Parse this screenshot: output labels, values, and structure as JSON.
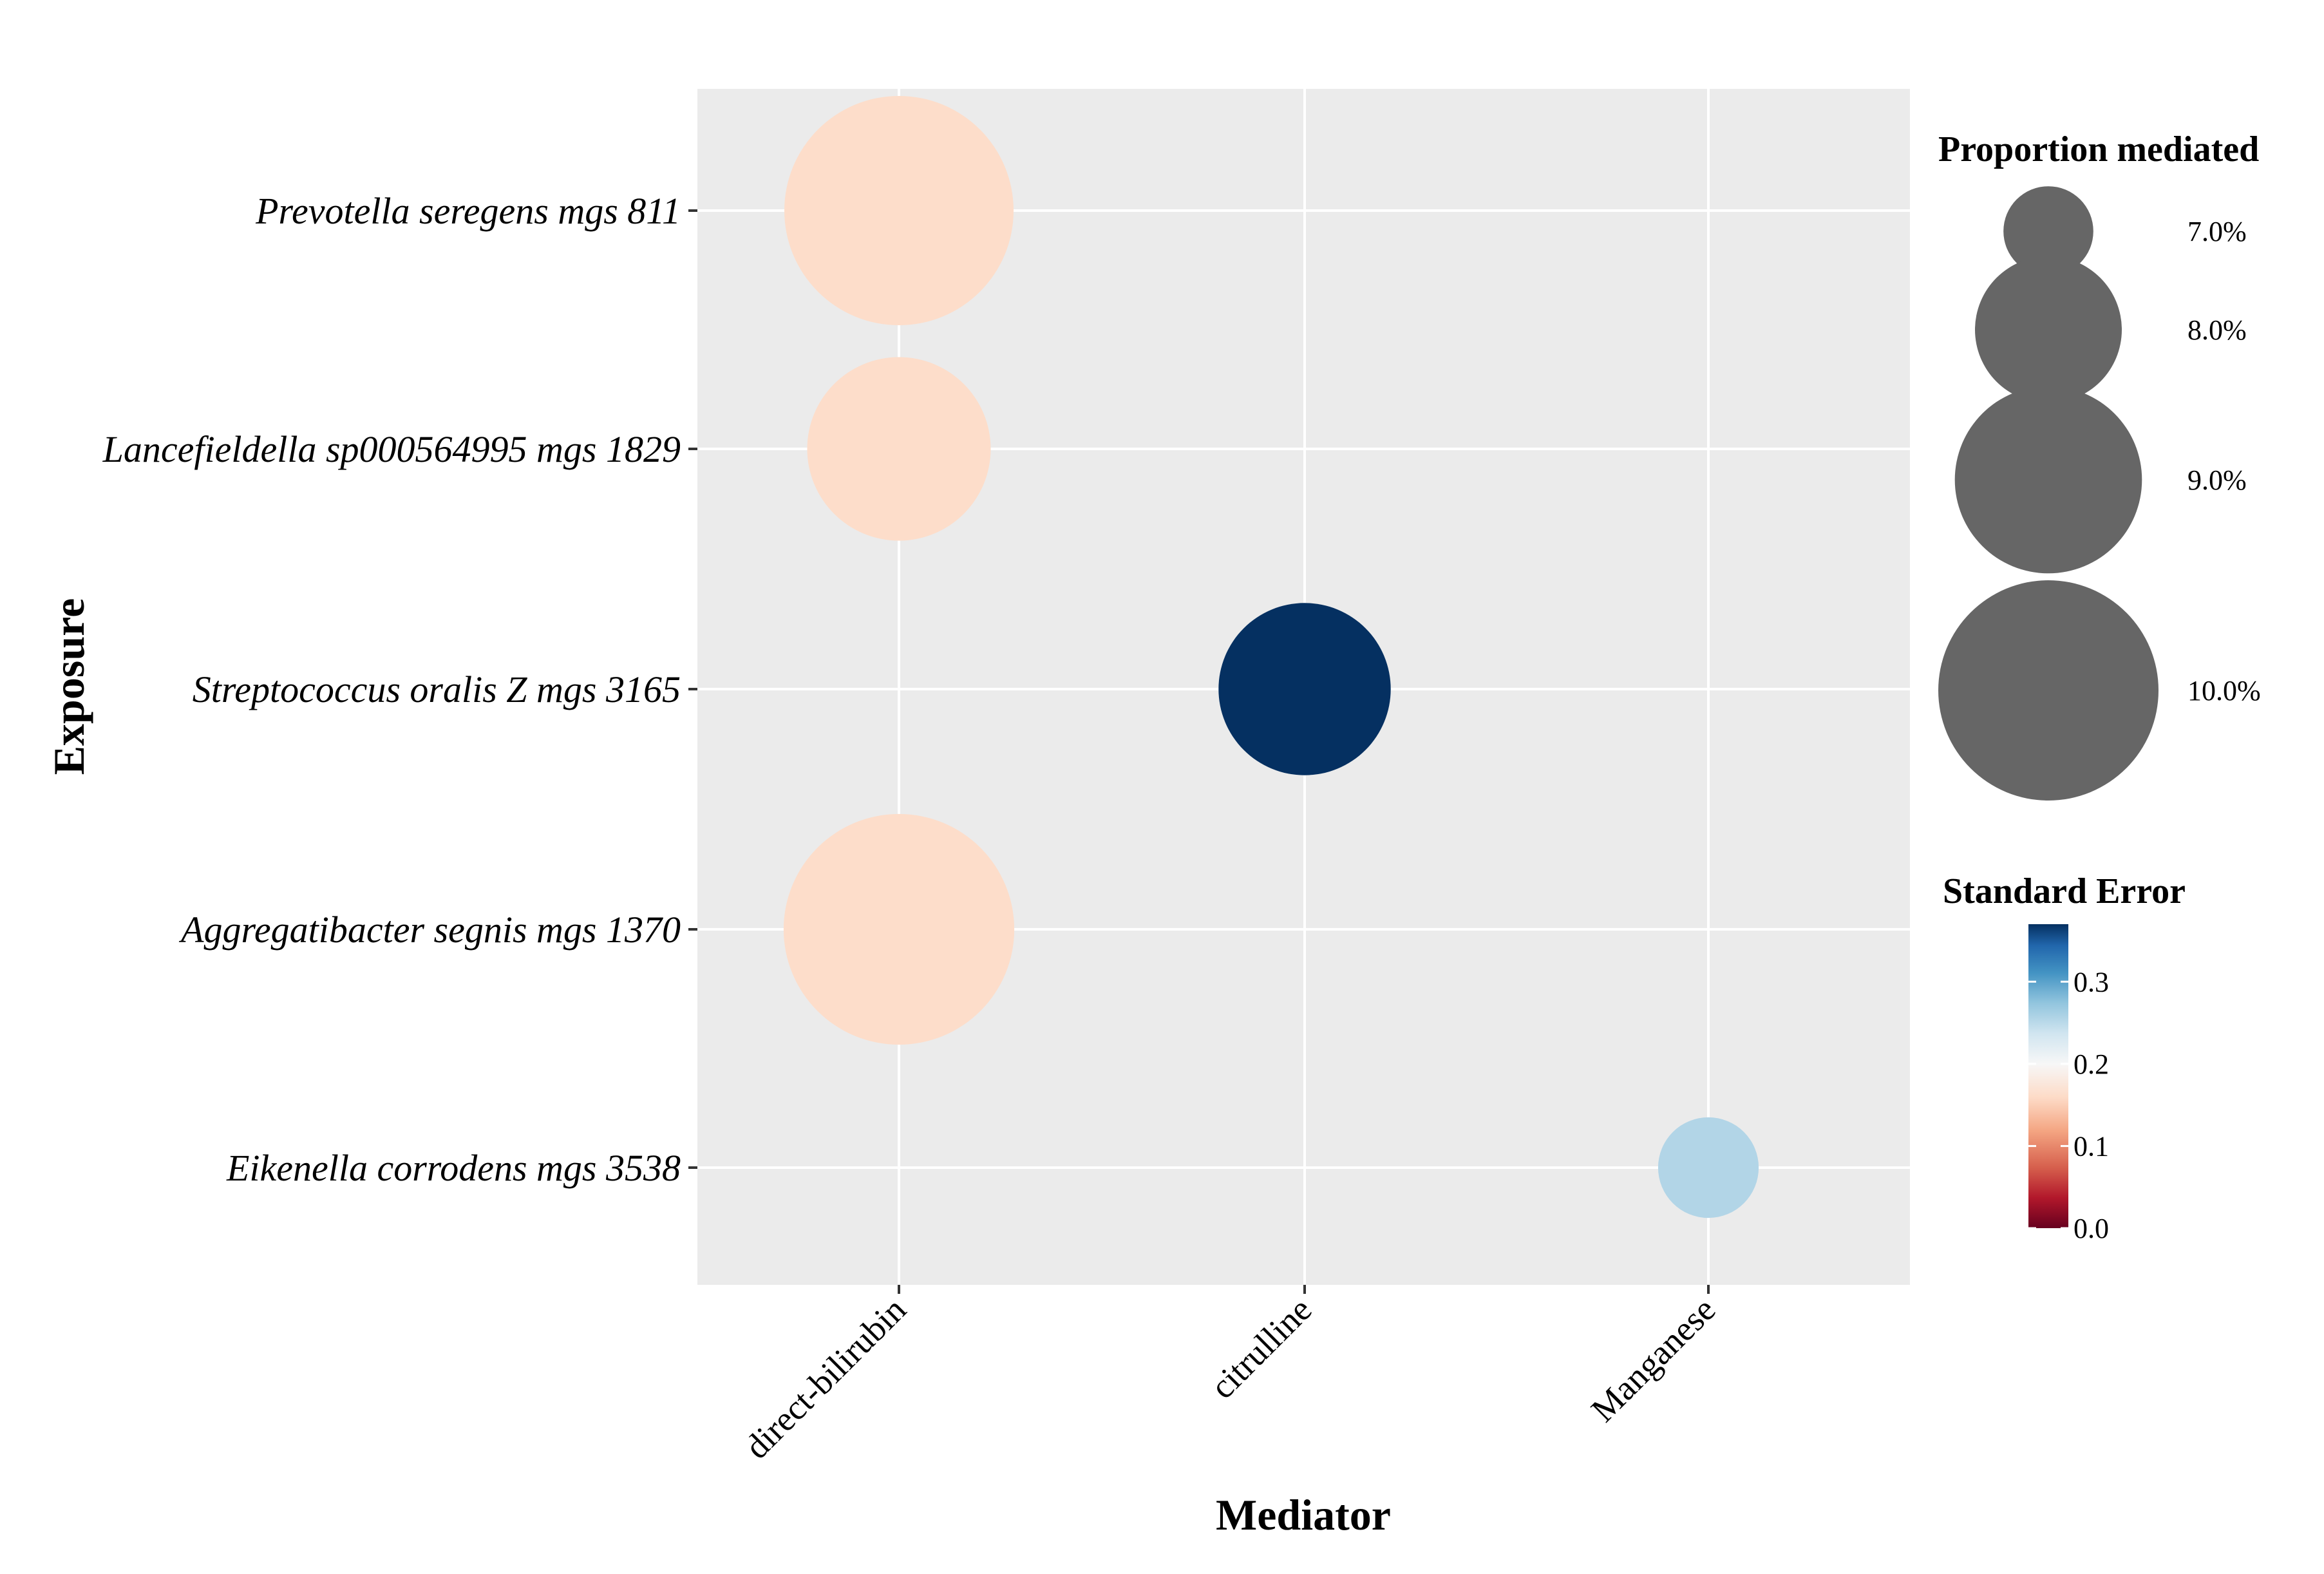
{
  "chart_data": {
    "type": "scatter",
    "xlabel": "Mediator",
    "ylabel": "Exposure",
    "x_categories": [
      "direct-bilirubin",
      "citrulline",
      "Manganese"
    ],
    "y_categories": [
      "Prevotella seregens mgs 811",
      "Lancefieldella sp000564995 mgs 1829",
      "Streptococcus oralis Z mgs 3165",
      "Aggregatibacter segnis mgs 1370",
      "Eikenella corrodens mgs 3538"
    ],
    "points": [
      {
        "mediator": "direct-bilirubin",
        "exposure": "Prevotella seregens mgs 811",
        "proportion_mediated": 10.3,
        "standard_error": 0.15
      },
      {
        "mediator": "direct-bilirubin",
        "exposure": "Lancefieldella sp000564995 mgs 1829",
        "proportion_mediated": 8.9,
        "standard_error": 0.15
      },
      {
        "mediator": "citrulline",
        "exposure": "Streptococcus oralis Z mgs 3165",
        "proportion_mediated": 8.6,
        "standard_error": 0.37
      },
      {
        "mediator": "direct-bilirubin",
        "exposure": "Aggregatibacter segnis mgs 1370",
        "proportion_mediated": 10.35,
        "standard_error": 0.15
      },
      {
        "mediator": "Manganese",
        "exposure": "Eikenella corrodens mgs 3538",
        "proportion_mediated": 7.15,
        "standard_error": 0.24
      }
    ],
    "size_legend": {
      "title": "Proportion mediated",
      "values": [
        7.0,
        8.0,
        9.0,
        10.0
      ],
      "labels": [
        "7.0%",
        "8.0%",
        "9.0%",
        "10.0%"
      ],
      "color": "#666666"
    },
    "color_legend": {
      "title": "Standard Error",
      "ticks": [
        0.0,
        0.1,
        0.2,
        0.3
      ],
      "tick_labels": [
        "0.0",
        "0.1",
        "0.2",
        "0.3"
      ],
      "range": [
        0.0,
        0.37
      ],
      "scale_colors": [
        "#67001f",
        "#b2182b",
        "#d6604d",
        "#f4a582",
        "#fddbc7",
        "#f7f7f7",
        "#d1e5f0",
        "#92c5de",
        "#4393c3",
        "#2166ac",
        "#053061"
      ]
    },
    "panel_background": "#ebebeb",
    "grid": true
  }
}
